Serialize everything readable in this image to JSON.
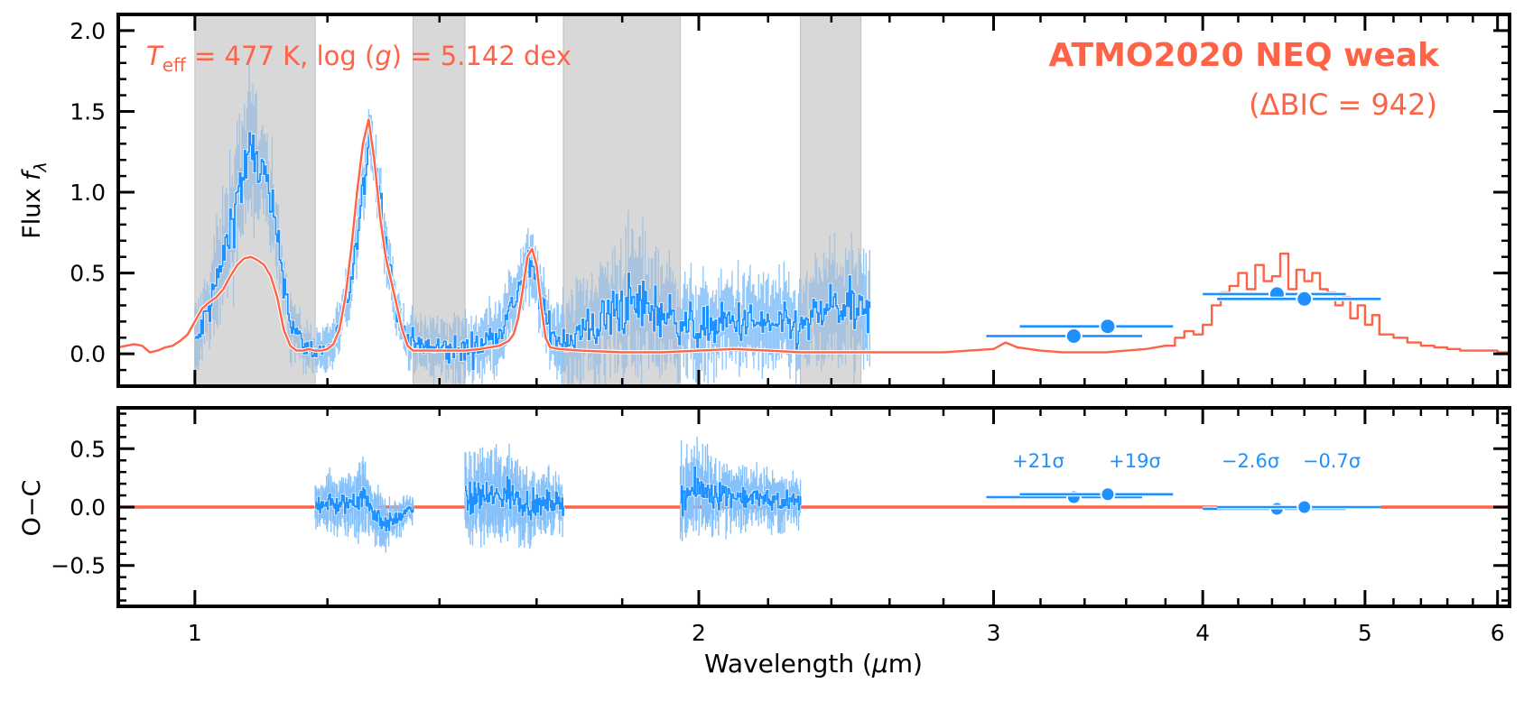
{
  "chart_data": [
    {
      "panel": "top",
      "type": "line",
      "ylabel": "Flux f_λ",
      "ylabel_main": "Flux ",
      "ylabel_sym": "f",
      "ylabel_sub": "λ",
      "xscale": "log",
      "xlim": [
        0.9,
        6.1
      ],
      "ylim": [
        -0.2,
        2.1
      ],
      "yticks": [
        0.0,
        0.5,
        1.0,
        1.5,
        2.0
      ],
      "ytick_labels": [
        "0.0",
        "0.5",
        "1.0",
        "1.5",
        "2.0"
      ],
      "annotation_params": {
        "teff_sym": "T",
        "teff_sub": "eff",
        "teff_text": " = 477 K, log (",
        "g_sym": "g",
        "g_text": ") = 5.142 dex"
      },
      "model_name": "ATMO2020 NEQ weak",
      "delta_bic": "(ΔBIC = 942)",
      "masked_regions": [
        [
          1.0,
          1.18
        ],
        [
          1.35,
          1.45
        ],
        [
          1.66,
          1.95
        ],
        [
          2.3,
          2.5
        ]
      ],
      "model_spectrum": {
        "name": "model",
        "color": "#FF6347",
        "x": [
          0.9,
          0.92,
          0.93,
          0.94,
          0.95,
          0.96,
          0.97,
          0.98,
          0.99,
          1.0,
          1.01,
          1.02,
          1.03,
          1.04,
          1.05,
          1.06,
          1.07,
          1.08,
          1.09,
          1.1,
          1.11,
          1.12,
          1.13,
          1.14,
          1.15,
          1.16,
          1.17,
          1.18,
          1.19,
          1.2,
          1.21,
          1.22,
          1.23,
          1.24,
          1.25,
          1.26,
          1.27,
          1.28,
          1.29,
          1.3,
          1.31,
          1.32,
          1.33,
          1.34,
          1.35,
          1.4,
          1.45,
          1.48,
          1.5,
          1.52,
          1.54,
          1.55,
          1.56,
          1.57,
          1.58,
          1.59,
          1.6,
          1.61,
          1.62,
          1.63,
          1.65,
          1.7,
          1.8,
          1.9,
          2.0,
          2.1,
          2.2,
          2.3,
          2.4,
          2.5,
          2.6,
          2.7,
          2.8,
          2.9,
          3.0,
          3.05,
          3.1,
          3.2,
          3.3,
          3.4,
          3.5,
          3.6,
          3.7,
          3.8,
          3.85,
          3.9,
          3.95,
          4.0,
          4.05,
          4.1,
          4.15,
          4.2,
          4.25,
          4.3,
          4.35,
          4.4,
          4.45,
          4.5,
          4.55,
          4.6,
          4.65,
          4.7,
          4.75,
          4.8,
          4.85,
          4.9,
          4.95,
          5.0,
          5.05,
          5.1,
          5.2,
          5.3,
          5.4,
          5.5,
          5.6,
          5.7,
          5.8,
          5.9,
          6.0,
          6.1
        ],
        "y": [
          0.04,
          0.06,
          0.05,
          0.01,
          0.02,
          0.04,
          0.05,
          0.08,
          0.12,
          0.2,
          0.28,
          0.32,
          0.35,
          0.4,
          0.48,
          0.55,
          0.59,
          0.6,
          0.58,
          0.55,
          0.48,
          0.35,
          0.15,
          0.05,
          0.02,
          0.02,
          0.03,
          0.02,
          0.02,
          0.03,
          0.06,
          0.15,
          0.35,
          0.65,
          1.0,
          1.3,
          1.45,
          1.2,
          0.85,
          0.6,
          0.45,
          0.3,
          0.15,
          0.05,
          0.02,
          0.02,
          0.02,
          0.03,
          0.04,
          0.05,
          0.08,
          0.12,
          0.22,
          0.4,
          0.6,
          0.65,
          0.55,
          0.3,
          0.1,
          0.04,
          0.03,
          0.02,
          0.01,
          0.01,
          0.02,
          0.03,
          0.02,
          0.01,
          0.01,
          0.01,
          0.01,
          0.01,
          0.01,
          0.02,
          0.03,
          0.07,
          0.04,
          0.02,
          0.01,
          0.01,
          0.01,
          0.02,
          0.03,
          0.05,
          0.1,
          0.14,
          0.12,
          0.18,
          0.3,
          0.38,
          0.42,
          0.5,
          0.4,
          0.55,
          0.45,
          0.48,
          0.62,
          0.4,
          0.52,
          0.45,
          0.5,
          0.4,
          0.38,
          0.3,
          0.35,
          0.22,
          0.3,
          0.18,
          0.24,
          0.12,
          0.1,
          0.07,
          0.05,
          0.04,
          0.03,
          0.02,
          0.02,
          0.02,
          0.01,
          0.01
        ]
      },
      "observed_spectrum": {
        "name": "data",
        "color": "#1E90FF",
        "range": [
          1.0,
          2.53
        ],
        "x": [
          1.0,
          1.02,
          1.04,
          1.06,
          1.08,
          1.1,
          1.12,
          1.14,
          1.16,
          1.18,
          1.2,
          1.22,
          1.24,
          1.26,
          1.27,
          1.28,
          1.3,
          1.32,
          1.34,
          1.36,
          1.4,
          1.44,
          1.48,
          1.52,
          1.54,
          1.56,
          1.58,
          1.6,
          1.62,
          1.64,
          1.66,
          1.7,
          1.75,
          1.8,
          1.85,
          1.9,
          1.95,
          2.0,
          2.1,
          2.2,
          2.3,
          2.4,
          2.5,
          2.53
        ],
        "y": [
          0.05,
          0.3,
          0.6,
          1.0,
          1.25,
          1.1,
          0.7,
          0.2,
          0.05,
          0.02,
          0.03,
          0.15,
          0.45,
          1.0,
          1.4,
          1.2,
          0.7,
          0.25,
          0.1,
          0.05,
          0.03,
          0.02,
          0.05,
          0.15,
          0.25,
          0.4,
          0.55,
          0.45,
          0.2,
          0.1,
          0.1,
          0.12,
          0.2,
          0.3,
          0.3,
          0.25,
          0.2,
          0.15,
          0.2,
          0.18,
          0.15,
          0.3,
          0.25,
          0.2
        ],
        "noise": [
          0.15,
          0.2,
          0.25,
          0.3,
          0.3,
          0.25,
          0.2,
          0.15,
          0.1,
          0.1,
          0.1,
          0.1,
          0.15,
          0.15,
          0.15,
          0.15,
          0.15,
          0.1,
          0.1,
          0.12,
          0.15,
          0.15,
          0.15,
          0.15,
          0.15,
          0.15,
          0.15,
          0.15,
          0.15,
          0.15,
          0.2,
          0.25,
          0.25,
          0.3,
          0.3,
          0.25,
          0.2,
          0.2,
          0.2,
          0.2,
          0.2,
          0.25,
          0.25,
          0.25
        ]
      },
      "photometry": {
        "name": "photometry",
        "color": "#1E90FF",
        "points": [
          {
            "x": 3.35,
            "y": 0.11,
            "xerr": [
              2.97,
              3.68
            ]
          },
          {
            "x": 3.51,
            "y": 0.17,
            "xerr": [
              3.11,
              3.84
            ]
          },
          {
            "x": 4.43,
            "y": 0.37,
            "xerr": [
              4.0,
              4.87
            ]
          },
          {
            "x": 4.6,
            "y": 0.34,
            "xerr": [
              4.08,
              5.11
            ]
          }
        ]
      }
    },
    {
      "panel": "bottom",
      "type": "line",
      "ylabel": "O−C",
      "xlabel": "Wavelength (μm)",
      "xlabel_main": "Wavelength (",
      "xlabel_mu": "μ",
      "xlabel_end": "m)",
      "xscale": "log",
      "xlim": [
        0.9,
        6.1
      ],
      "ylim": [
        -0.85,
        0.85
      ],
      "xticks": [
        1,
        2,
        3,
        4,
        5,
        6
      ],
      "xtick_labels": [
        "1",
        "2",
        "3",
        "4",
        "5",
        "6"
      ],
      "yticks": [
        -0.5,
        0.0,
        0.5
      ],
      "ytick_labels": [
        "−0.5",
        "0.0",
        "0.5"
      ],
      "zero_line_color": "#FF6347",
      "residual_segments": [
        {
          "range": [
            1.18,
            1.35
          ],
          "x": [
            1.18,
            1.2,
            1.22,
            1.24,
            1.26,
            1.28,
            1.3,
            1.32,
            1.35
          ],
          "y": [
            0.02,
            0.05,
            0.0,
            0.05,
            0.1,
            -0.05,
            -0.15,
            -0.1,
            0.0
          ],
          "noise": [
            0.15,
            0.18,
            0.2,
            0.2,
            0.25,
            0.2,
            0.15,
            0.12,
            0.1
          ]
        },
        {
          "range": [
            1.45,
            1.66
          ],
          "x": [
            1.45,
            1.48,
            1.51,
            1.54,
            1.57,
            1.6,
            1.63,
            1.66
          ],
          "y": [
            0.05,
            0.1,
            0.08,
            0.12,
            0.05,
            0.0,
            0.05,
            0.02
          ],
          "noise": [
            0.25,
            0.3,
            0.3,
            0.3,
            0.25,
            0.2,
            0.2,
            0.15
          ]
        },
        {
          "range": [
            1.95,
            2.3
          ],
          "x": [
            1.95,
            2.0,
            2.05,
            2.1,
            2.15,
            2.2,
            2.25,
            2.3
          ],
          "y": [
            0.1,
            0.15,
            0.12,
            0.1,
            0.08,
            0.06,
            0.05,
            0.04
          ],
          "noise": [
            0.3,
            0.3,
            0.25,
            0.22,
            0.2,
            0.18,
            0.18,
            0.18
          ]
        }
      ],
      "photometry_residuals": [
        {
          "x": 3.35,
          "y": 0.085,
          "xerr": [
            2.97,
            3.68
          ],
          "label": "+21σ",
          "label_num": "+21"
        },
        {
          "x": 3.51,
          "y": 0.11,
          "xerr": [
            3.11,
            3.84
          ],
          "label": "+19σ",
          "label_num": "+19"
        },
        {
          "x": 4.43,
          "y": -0.015,
          "xerr": [
            4.0,
            4.87
          ],
          "label": "−2.6σ",
          "label_num": "−2.6"
        },
        {
          "x": 4.6,
          "y": 0.0,
          "xerr": [
            4.08,
            5.11
          ],
          "label": "−0.7σ",
          "label_num": "−0.7"
        }
      ],
      "sigma_symbol": "σ"
    }
  ],
  "colors": {
    "model": "#FF6347",
    "data": "#1E90FF",
    "data_light": "#87C1FA",
    "mask": "#D8D8D8",
    "axis": "#000000"
  }
}
